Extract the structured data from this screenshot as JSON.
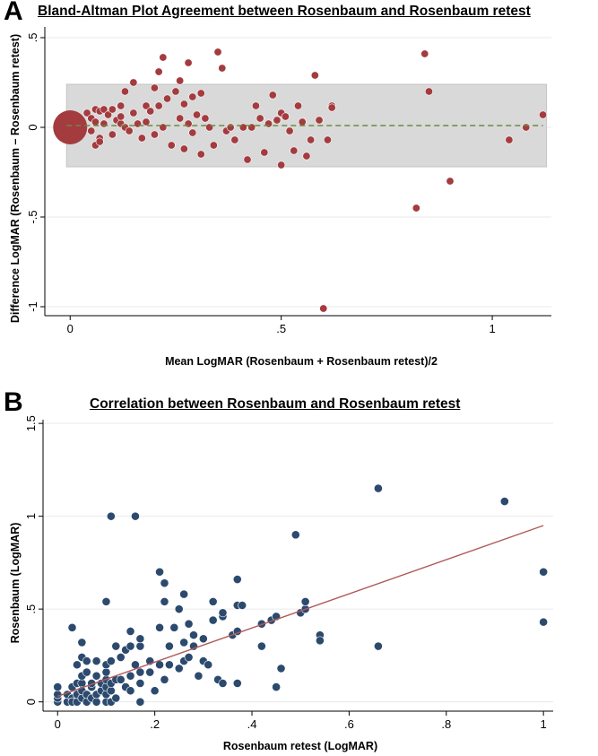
{
  "panels": [
    {
      "letter": "A"
    },
    {
      "letter": "B"
    }
  ],
  "chart_data": [
    {
      "type": "scatter",
      "title": "Bland-Altman Plot Agreement between Rosenbaum and Rosenbaum retest",
      "xlabel": "Mean LogMAR (Rosenbaum + Rosenbaum retest)/2",
      "ylabel": "Difference LogMAR (Rosenbaum – Rosenbaum retest)",
      "x_ticks": [
        "0",
        ".5",
        "1"
      ],
      "y_ticks": [
        "-1",
        "-.5",
        "0",
        ".5"
      ],
      "xlim": [
        -0.06,
        1.14
      ],
      "ylim": [
        -1.05,
        0.56
      ],
      "grid": true,
      "marker_color": "#a33b3f",
      "band_color": "#d9d9d9",
      "mean_line_color": "#6b8a3e",
      "limits_of_agreement": [
        -0.22,
        0.24
      ],
      "mean_difference": 0.01,
      "points": [
        {
          "x": 0.0,
          "y": 0.0,
          "size": 36
        },
        {
          "x": 0.04,
          "y": 0.08
        },
        {
          "x": 0.05,
          "y": 0.05
        },
        {
          "x": 0.06,
          "y": 0.1
        },
        {
          "x": 0.07,
          "y": 0.09
        },
        {
          "x": 0.08,
          "y": 0.1
        },
        {
          "x": 0.06,
          "y": 0.03
        },
        {
          "x": 0.05,
          "y": -0.02
        },
        {
          "x": 0.07,
          "y": -0.06
        },
        {
          "x": 0.06,
          "y": -0.1
        },
        {
          "x": 0.07,
          "y": -0.08
        },
        {
          "x": 0.08,
          "y": 0.02
        },
        {
          "x": 0.09,
          "y": 0.07
        },
        {
          "x": 0.1,
          "y": 0.1
        },
        {
          "x": 0.11,
          "y": 0.04
        },
        {
          "x": 0.1,
          "y": -0.04
        },
        {
          "x": 0.12,
          "y": 0.02
        },
        {
          "x": 0.12,
          "y": 0.12
        },
        {
          "x": 0.13,
          "y": 0.2
        },
        {
          "x": 0.12,
          "y": 0.06
        },
        {
          "x": 0.13,
          "y": 0.0
        },
        {
          "x": 0.14,
          "y": -0.02
        },
        {
          "x": 0.15,
          "y": 0.25
        },
        {
          "x": 0.15,
          "y": 0.08
        },
        {
          "x": 0.16,
          "y": 0.02
        },
        {
          "x": 0.17,
          "y": -0.06
        },
        {
          "x": 0.18,
          "y": 0.12
        },
        {
          "x": 0.18,
          "y": 0.03
        },
        {
          "x": 0.19,
          "y": 0.09
        },
        {
          "x": 0.2,
          "y": 0.22
        },
        {
          "x": 0.2,
          "y": -0.04
        },
        {
          "x": 0.21,
          "y": 0.12
        },
        {
          "x": 0.22,
          "y": 0.0
        },
        {
          "x": 0.21,
          "y": 0.31
        },
        {
          "x": 0.22,
          "y": 0.39
        },
        {
          "x": 0.23,
          "y": 0.16
        },
        {
          "x": 0.24,
          "y": -0.1
        },
        {
          "x": 0.25,
          "y": 0.2
        },
        {
          "x": 0.26,
          "y": 0.26
        },
        {
          "x": 0.26,
          "y": 0.05
        },
        {
          "x": 0.27,
          "y": -0.12
        },
        {
          "x": 0.27,
          "y": 0.13
        },
        {
          "x": 0.28,
          "y": 0.36
        },
        {
          "x": 0.28,
          "y": 0.02
        },
        {
          "x": 0.29,
          "y": 0.17
        },
        {
          "x": 0.29,
          "y": -0.03
        },
        {
          "x": 0.3,
          "y": 0.07
        },
        {
          "x": 0.31,
          "y": -0.15
        },
        {
          "x": 0.31,
          "y": 0.19
        },
        {
          "x": 0.32,
          "y": 0.05
        },
        {
          "x": 0.33,
          "y": 0.0
        },
        {
          "x": 0.34,
          "y": -0.1
        },
        {
          "x": 0.35,
          "y": 0.42
        },
        {
          "x": 0.36,
          "y": 0.33
        },
        {
          "x": 0.37,
          "y": -0.02
        },
        {
          "x": 0.38,
          "y": 0.0
        },
        {
          "x": 0.39,
          "y": -0.07
        },
        {
          "x": 0.41,
          "y": 0.0
        },
        {
          "x": 0.42,
          "y": -0.18
        },
        {
          "x": 0.43,
          "y": 0.0
        },
        {
          "x": 0.44,
          "y": 0.12
        },
        {
          "x": 0.45,
          "y": 0.05
        },
        {
          "x": 0.46,
          "y": -0.14
        },
        {
          "x": 0.47,
          "y": 0.02
        },
        {
          "x": 0.48,
          "y": 0.18
        },
        {
          "x": 0.49,
          "y": 0.04
        },
        {
          "x": 0.5,
          "y": -0.21
        },
        {
          "x": 0.5,
          "y": 0.08
        },
        {
          "x": 0.51,
          "y": 0.06
        },
        {
          "x": 0.52,
          "y": -0.02
        },
        {
          "x": 0.53,
          "y": -0.13
        },
        {
          "x": 0.54,
          "y": 0.12
        },
        {
          "x": 0.55,
          "y": 0.03
        },
        {
          "x": 0.56,
          "y": -0.16
        },
        {
          "x": 0.57,
          "y": -0.07
        },
        {
          "x": 0.58,
          "y": 0.29
        },
        {
          "x": 0.59,
          "y": 0.04
        },
        {
          "x": 0.6,
          "y": -1.01
        },
        {
          "x": 0.61,
          "y": -0.07
        },
        {
          "x": 0.62,
          "y": 0.12
        },
        {
          "x": 0.62,
          "y": 0.11
        },
        {
          "x": 0.82,
          "y": -0.45
        },
        {
          "x": 0.84,
          "y": 0.41
        },
        {
          "x": 0.85,
          "y": 0.2
        },
        {
          "x": 0.9,
          "y": -0.3
        },
        {
          "x": 1.04,
          "y": -0.07
        },
        {
          "x": 1.08,
          "y": 0.0
        },
        {
          "x": 1.12,
          "y": 0.07
        }
      ]
    },
    {
      "type": "scatter",
      "title": "Correlation between Rosenbaum and Rosenbaum retest",
      "xlabel": "Rosenbaum retest (LogMAR)",
      "ylabel": "Rosenbaum (LogMAR)",
      "x_ticks": [
        "0",
        ".2",
        ".4",
        ".6",
        ".8",
        "1"
      ],
      "y_ticks": [
        "0",
        ".5",
        "1",
        "1.5"
      ],
      "xlim": [
        -0.03,
        1.02
      ],
      "ylim": [
        -0.05,
        1.52
      ],
      "grid": true,
      "marker_color": "#2c4a6e",
      "fit_line_color": "#b05a5a",
      "fit_line": {
        "x0": 0.0,
        "y0": 0.03,
        "x1": 1.0,
        "y1": 0.95
      },
      "points": [
        {
          "x": 0.0,
          "y": 0.0
        },
        {
          "x": 0.0,
          "y": 0.02
        },
        {
          "x": 0.0,
          "y": 0.04
        },
        {
          "x": 0.0,
          "y": 0.08
        },
        {
          "x": 0.02,
          "y": 0.0
        },
        {
          "x": 0.02,
          "y": 0.04
        },
        {
          "x": 0.03,
          "y": 0.02
        },
        {
          "x": 0.03,
          "y": 0.0
        },
        {
          "x": 0.03,
          "y": 0.08
        },
        {
          "x": 0.03,
          "y": 0.4
        },
        {
          "x": 0.04,
          "y": 0.0
        },
        {
          "x": 0.04,
          "y": 0.04
        },
        {
          "x": 0.04,
          "y": 0.1
        },
        {
          "x": 0.04,
          "y": 0.2
        },
        {
          "x": 0.05,
          "y": 0.1
        },
        {
          "x": 0.05,
          "y": 0.14
        },
        {
          "x": 0.05,
          "y": 0.24
        },
        {
          "x": 0.05,
          "y": 0.32
        },
        {
          "x": 0.05,
          "y": 0.02
        },
        {
          "x": 0.05,
          "y": 0.06
        },
        {
          "x": 0.06,
          "y": 0.0
        },
        {
          "x": 0.06,
          "y": 0.04
        },
        {
          "x": 0.06,
          "y": 0.16
        },
        {
          "x": 0.06,
          "y": 0.22
        },
        {
          "x": 0.07,
          "y": 0.02
        },
        {
          "x": 0.07,
          "y": 0.08
        },
        {
          "x": 0.07,
          "y": 0.1
        },
        {
          "x": 0.08,
          "y": 0.0
        },
        {
          "x": 0.08,
          "y": 0.04
        },
        {
          "x": 0.08,
          "y": 0.14
        },
        {
          "x": 0.08,
          "y": 0.22
        },
        {
          "x": 0.09,
          "y": 0.06
        },
        {
          "x": 0.09,
          "y": 0.1
        },
        {
          "x": 0.1,
          "y": 0.0
        },
        {
          "x": 0.1,
          "y": 0.04
        },
        {
          "x": 0.1,
          "y": 0.08
        },
        {
          "x": 0.1,
          "y": 0.12
        },
        {
          "x": 0.1,
          "y": 0.16
        },
        {
          "x": 0.1,
          "y": 0.2
        },
        {
          "x": 0.1,
          "y": 0.54
        },
        {
          "x": 0.11,
          "y": 0.0
        },
        {
          "x": 0.11,
          "y": 0.06
        },
        {
          "x": 0.11,
          "y": 0.1
        },
        {
          "x": 0.11,
          "y": 0.22
        },
        {
          "x": 0.11,
          "y": 1.0
        },
        {
          "x": 0.12,
          "y": 0.02
        },
        {
          "x": 0.12,
          "y": 0.12
        },
        {
          "x": 0.12,
          "y": 0.3
        },
        {
          "x": 0.13,
          "y": 0.12
        },
        {
          "x": 0.13,
          "y": 0.24
        },
        {
          "x": 0.14,
          "y": 0.08
        },
        {
          "x": 0.14,
          "y": 0.28
        },
        {
          "x": 0.15,
          "y": 0.06
        },
        {
          "x": 0.15,
          "y": 0.14
        },
        {
          "x": 0.15,
          "y": 0.3
        },
        {
          "x": 0.15,
          "y": 0.38
        },
        {
          "x": 0.16,
          "y": 0.2
        },
        {
          "x": 0.16,
          "y": 1.0
        },
        {
          "x": 0.17,
          "y": 0.0
        },
        {
          "x": 0.17,
          "y": 0.1
        },
        {
          "x": 0.17,
          "y": 0.16
        },
        {
          "x": 0.17,
          "y": 0.3
        },
        {
          "x": 0.17,
          "y": 0.34
        },
        {
          "x": 0.19,
          "y": 0.16
        },
        {
          "x": 0.19,
          "y": 0.22
        },
        {
          "x": 0.2,
          "y": 0.06
        },
        {
          "x": 0.21,
          "y": 0.4
        },
        {
          "x": 0.21,
          "y": 0.7
        },
        {
          "x": 0.21,
          "y": 0.2
        },
        {
          "x": 0.22,
          "y": 0.12
        },
        {
          "x": 0.22,
          "y": 0.54
        },
        {
          "x": 0.22,
          "y": 0.64
        },
        {
          "x": 0.23,
          "y": 0.2
        },
        {
          "x": 0.23,
          "y": 0.3
        },
        {
          "x": 0.24,
          "y": 0.4
        },
        {
          "x": 0.25,
          "y": 0.5
        },
        {
          "x": 0.25,
          "y": 0.18
        },
        {
          "x": 0.26,
          "y": 0.32
        },
        {
          "x": 0.26,
          "y": 0.22
        },
        {
          "x": 0.26,
          "y": 0.58
        },
        {
          "x": 0.27,
          "y": 0.42
        },
        {
          "x": 0.27,
          "y": 0.24
        },
        {
          "x": 0.28,
          "y": 0.3
        },
        {
          "x": 0.28,
          "y": 0.36
        },
        {
          "x": 0.29,
          "y": 0.14
        },
        {
          "x": 0.3,
          "y": 0.34
        },
        {
          "x": 0.3,
          "y": 0.22
        },
        {
          "x": 0.31,
          "y": 0.2
        },
        {
          "x": 0.32,
          "y": 0.44
        },
        {
          "x": 0.32,
          "y": 0.54
        },
        {
          "x": 0.33,
          "y": 0.12
        },
        {
          "x": 0.34,
          "y": 0.1
        },
        {
          "x": 0.34,
          "y": 0.46
        },
        {
          "x": 0.34,
          "y": 0.48
        },
        {
          "x": 0.36,
          "y": 0.36
        },
        {
          "x": 0.37,
          "y": 0.1
        },
        {
          "x": 0.37,
          "y": 0.38
        },
        {
          "x": 0.37,
          "y": 0.52
        },
        {
          "x": 0.37,
          "y": 0.66
        },
        {
          "x": 0.38,
          "y": 0.52
        },
        {
          "x": 0.42,
          "y": 0.3
        },
        {
          "x": 0.42,
          "y": 0.42
        },
        {
          "x": 0.44,
          "y": 0.44
        },
        {
          "x": 0.45,
          "y": 0.46
        },
        {
          "x": 0.45,
          "y": 0.08
        },
        {
          "x": 0.46,
          "y": 0.18
        },
        {
          "x": 0.49,
          "y": 0.9
        },
        {
          "x": 0.5,
          "y": 0.48
        },
        {
          "x": 0.51,
          "y": 0.5
        },
        {
          "x": 0.51,
          "y": 0.54
        },
        {
          "x": 0.54,
          "y": 0.36
        },
        {
          "x": 0.54,
          "y": 0.33
        },
        {
          "x": 0.66,
          "y": 1.15
        },
        {
          "x": 0.66,
          "y": 0.3
        },
        {
          "x": 0.92,
          "y": 1.08
        },
        {
          "x": 1.0,
          "y": 0.7
        },
        {
          "x": 1.0,
          "y": 0.43
        }
      ]
    }
  ]
}
